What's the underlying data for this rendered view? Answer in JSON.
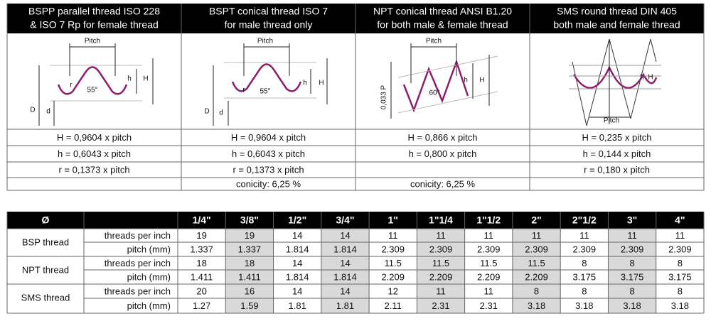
{
  "top": {
    "headers": [
      [
        "BSPP parallel thread ISO 228",
        "& ISO 7 Rp for female thread"
      ],
      [
        "BSPT conical thread ISO 7",
        "for male thread only"
      ],
      [
        "NPT conical thread ANSI B1.20",
        "for both male & female thread"
      ],
      [
        "SMS round thread DIN 405",
        "both male and female thread"
      ]
    ],
    "diagrams": [
      {
        "labels": [
          "Pitch",
          "h",
          "H",
          "r",
          "55°",
          "D",
          "d"
        ]
      },
      {
        "labels": [
          "Pitch",
          "h",
          "H",
          "r",
          "55°",
          "D",
          "d"
        ]
      },
      {
        "labels": [
          "Pitch",
          "h",
          "H",
          "60°",
          "0,033 P"
        ]
      },
      {
        "labels": [
          "Pitch",
          "H",
          "h"
        ]
      }
    ],
    "rows": [
      [
        "H = 0,9604 x pitch",
        "H = 0,9604 x pitch",
        "H = 0,866 x pitch",
        "H = 0,235 x pitch"
      ],
      [
        "h = 0,6043 x pitch",
        "h = 0,6043 x pitch",
        "h = 0,800 x pitch",
        "h = 0,144 x pitch"
      ],
      [
        "r = 0,1373 x pitch",
        "r = 0,1373 x pitch",
        null,
        "r = 0,180 x pitch"
      ],
      [
        null,
        "conicity: 6,25 %",
        "conicity: 6,25 %",
        null
      ]
    ]
  },
  "bottom": {
    "header": [
      "Ø",
      null,
      "1/4\"",
      "3/8\"",
      "1/2\"",
      "3/4\"",
      "1\"",
      "1\"1/4",
      "1\"1/2",
      "2\"",
      "2\"1/2",
      "3\"",
      "4\""
    ],
    "groups": [
      {
        "name": "BSP thread",
        "rows": [
          {
            "label": "threads per inch",
            "values": [
              19,
              19,
              14,
              14,
              11,
              11,
              11,
              11,
              11,
              11,
              11
            ]
          },
          {
            "label": "pitch (mm)",
            "values": [
              1.337,
              1.337,
              1.814,
              1.814,
              2.309,
              2.309,
              2.309,
              2.309,
              2.309,
              2.309,
              2.309
            ]
          }
        ]
      },
      {
        "name": "NPT thread",
        "rows": [
          {
            "label": "threads per inch",
            "values": [
              18,
              18,
              14,
              14,
              11.5,
              11.5,
              11.5,
              11.5,
              8,
              8,
              8
            ]
          },
          {
            "label": "pitch (mm)",
            "values": [
              1.411,
              1.411,
              1.814,
              1.814,
              2.209,
              2.209,
              2.209,
              2.209,
              3.175,
              3.175,
              3.175
            ]
          }
        ]
      },
      {
        "name": "SMS thread",
        "rows": [
          {
            "label": "threads per inch",
            "values": [
              20,
              16,
              14,
              14,
              12,
              11,
              11,
              8,
              8,
              8,
              8
            ]
          },
          {
            "label": "pitch (mm)",
            "values": [
              1.27,
              1.59,
              1.81,
              1.81,
              2.11,
              2.31,
              2.31,
              3.18,
              3.18,
              3.18,
              3.18
            ]
          }
        ]
      }
    ]
  }
}
